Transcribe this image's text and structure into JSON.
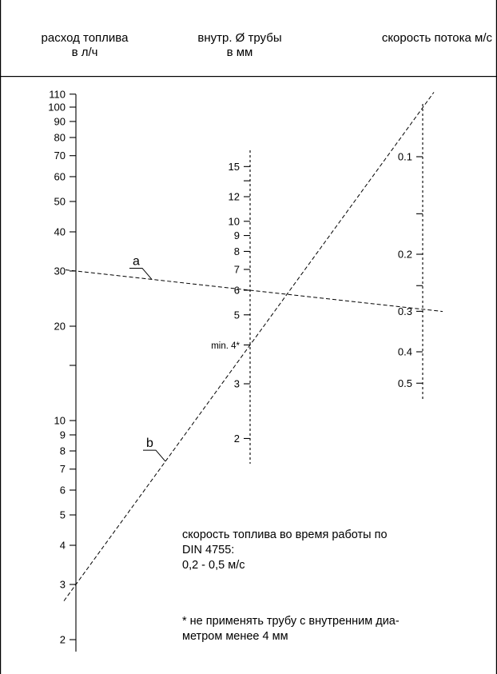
{
  "headers": {
    "flow_line1": "расход топлива",
    "flow_line2": "в л/ч",
    "diam_line1": "внутр. Ø трубы",
    "diam_line2": "в мм",
    "speed": "скорость потока м/с"
  },
  "scales": {
    "flow": [
      {
        "label": "110",
        "value": 110
      },
      {
        "label": "100",
        "value": 100
      },
      {
        "label": "90",
        "value": 90
      },
      {
        "label": "80",
        "value": 80
      },
      {
        "label": "70",
        "value": 70
      },
      {
        "label": "60",
        "value": 60
      },
      {
        "label": "50",
        "value": 50
      },
      {
        "label": "40",
        "value": 40
      },
      {
        "label": "30",
        "value": 30
      },
      {
        "label": "20",
        "value": 20
      },
      {
        "label": "",
        "value": 15
      },
      {
        "label": "10",
        "value": 10
      },
      {
        "label": "9",
        "value": 9
      },
      {
        "label": "8",
        "value": 8
      },
      {
        "label": "7",
        "value": 7
      },
      {
        "label": "6",
        "value": 6
      },
      {
        "label": "5",
        "value": 5
      },
      {
        "label": "4",
        "value": 4
      },
      {
        "label": "3",
        "value": 3
      },
      {
        "label": "2",
        "value": 2
      }
    ],
    "diameter": [
      {
        "label": "15",
        "value": 15
      },
      {
        "label": "",
        "value": 13.5
      },
      {
        "label": "12",
        "value": 12
      },
      {
        "label": "10",
        "value": 10
      },
      {
        "label": "9",
        "value": 9
      },
      {
        "label": "8",
        "value": 8
      },
      {
        "label": "7",
        "value": 7
      },
      {
        "label": "6",
        "value": 6
      },
      {
        "label": "5",
        "value": 5
      },
      {
        "label": "min. 4*",
        "value": 4
      },
      {
        "label": "3",
        "value": 3
      },
      {
        "label": "2",
        "value": 2
      }
    ],
    "speed": [
      {
        "label": "0.1",
        "value": 0.1
      },
      {
        "label": "",
        "value": 0.15
      },
      {
        "label": "0.2",
        "value": 0.2
      },
      {
        "label": "",
        "value": 0.25
      },
      {
        "label": "0.3",
        "value": 0.3
      },
      {
        "label": "0.4",
        "value": 0.4
      },
      {
        "label": "0.5",
        "value": 0.5
      }
    ]
  },
  "example_lines": [
    {
      "label": "a",
      "flow": 30,
      "diameter": 6,
      "speed": 0.3
    },
    {
      "label": "b",
      "flow": 3,
      "diameter": 4,
      "speed": 0.08
    }
  ],
  "notes": {
    "speed_line1": "скорость топлива во время работы по",
    "speed_line2": "DIN 4755:",
    "speed_line3": "0,2 - 0,5 м/с",
    "footnote_line1": "* не применять трубу с внутренним диа-",
    "footnote_line2": "метром менее 4 мм"
  }
}
